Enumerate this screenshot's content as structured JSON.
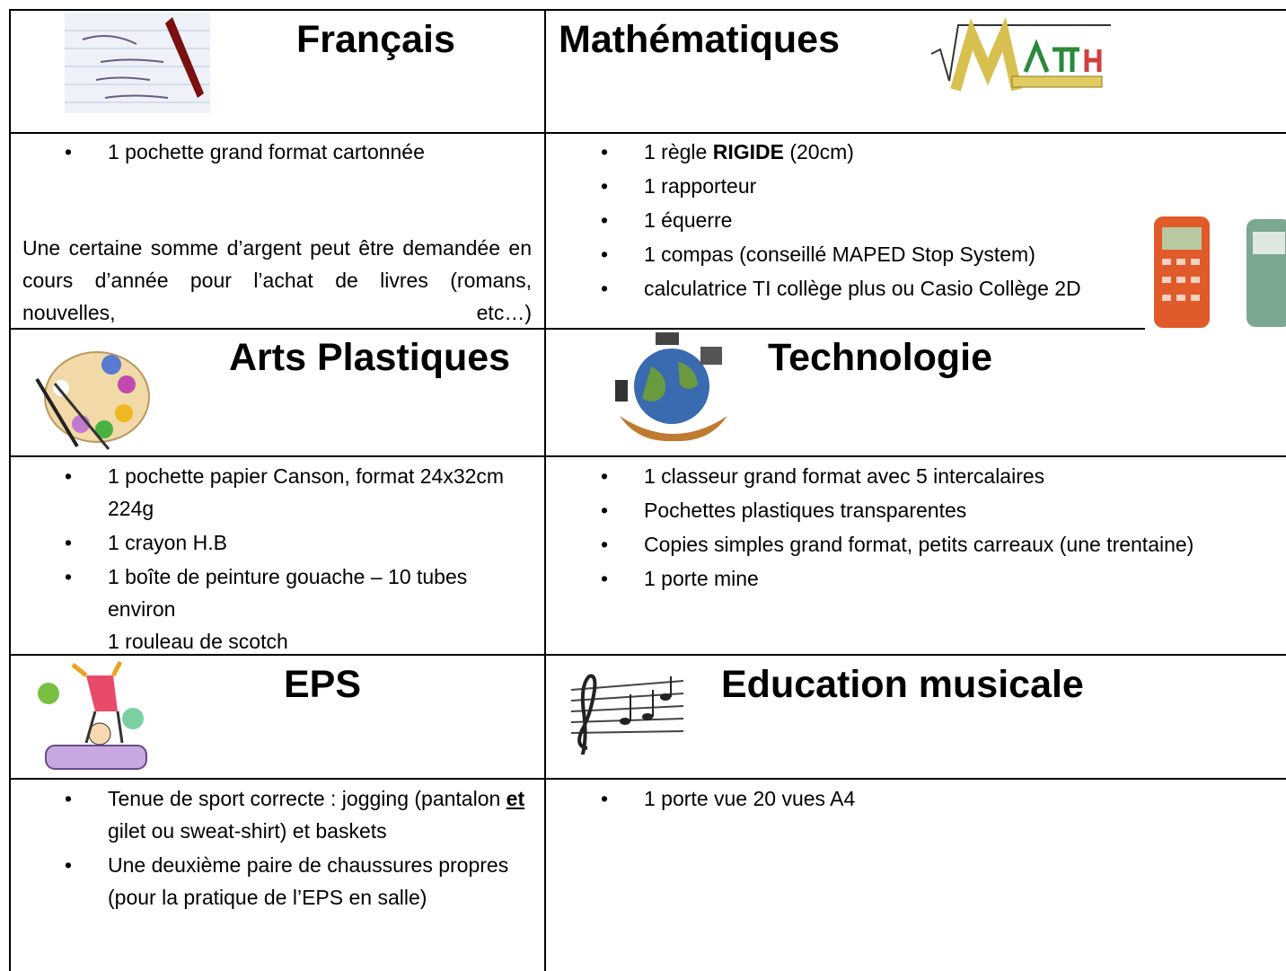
{
  "sections": [
    {
      "title": "Français",
      "items": [
        [
          "1 pochette grand format cartonnée"
        ]
      ],
      "note": "Une certaine somme d’argent peut être demandée en cours d’année pour l’achat de livres (romans, nouvelles, etc…)"
    },
    {
      "title": "Mathématiques",
      "items": [
        [
          "1 règle ",
          {
            "text": "RIGIDE",
            "bold": true
          },
          " (20cm)"
        ],
        [
          "1 rapporteur"
        ],
        [
          "1 équerre"
        ],
        [
          "1 compas (conseillé MAPED Stop System)"
        ],
        [
          " calculatrice TI collège plus ou Casio Collège 2D"
        ]
      ]
    },
    {
      "title": "Arts Plastiques",
      "items": [
        [
          "1 pochette papier Canson, format 24x32cm 224g"
        ],
        [
          "1 crayon H.B"
        ],
        [
          "1 boîte de peinture gouache – 10 tubes environ"
        ]
      ],
      "tail": "1 rouleau de scotch"
    },
    {
      "title": "Technologie",
      "items": [
        [
          "1 classeur grand format avec 5 intercalaires"
        ],
        [
          "Pochettes plastiques transparentes"
        ],
        [
          "Copies simples grand format, petits carreaux (une trentaine)"
        ],
        [
          "1 porte mine"
        ]
      ]
    },
    {
      "title": "EPS",
      "items": [
        [
          "Tenue de sport correcte : jogging (pantalon ",
          {
            "text": "et",
            "bold": true,
            "underline": true
          },
          " gilet ou sweat-shirt) et baskets"
        ],
        [
          "Une deuxième paire de chaussures propres (pour la pratique de l’EPS en salle)"
        ]
      ]
    },
    {
      "title": "Education musicale",
      "items": [
        [
          "1 porte vue 20 vues A4"
        ]
      ]
    }
  ]
}
